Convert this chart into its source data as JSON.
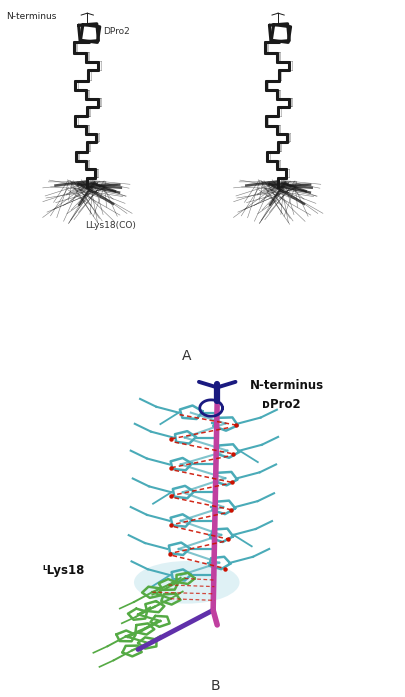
{
  "fig_width": 4.06,
  "fig_height": 6.97,
  "dpi": 100,
  "bg_color": "#ffffff",
  "panel_A_label": "A",
  "panel_B_label": "B",
  "label_Nterminus_A": "N-terminus",
  "label_DPro2_A": "DPro2",
  "label_LLys18CO_A": "LLys18(CO)",
  "label_Nterminus_B": "N-terminus",
  "label_DPro2_B": "ᴅPro2",
  "label_LLys18_B": "ᴸLys18",
  "color_backbone": "#4AABB8",
  "color_axis_magenta": "#C040A0",
  "color_Nterminus_blue": "#1A1A80",
  "color_LLys18_green": "#55AA44",
  "color_red_dash": "#CC1100",
  "color_highlight_cyan": "#B0DDE8",
  "color_purple_lower": "#6030AA",
  "struct_color": "#1a1a1a",
  "struct_lw_thick": 2.2,
  "struct_lw_thin": 0.7
}
